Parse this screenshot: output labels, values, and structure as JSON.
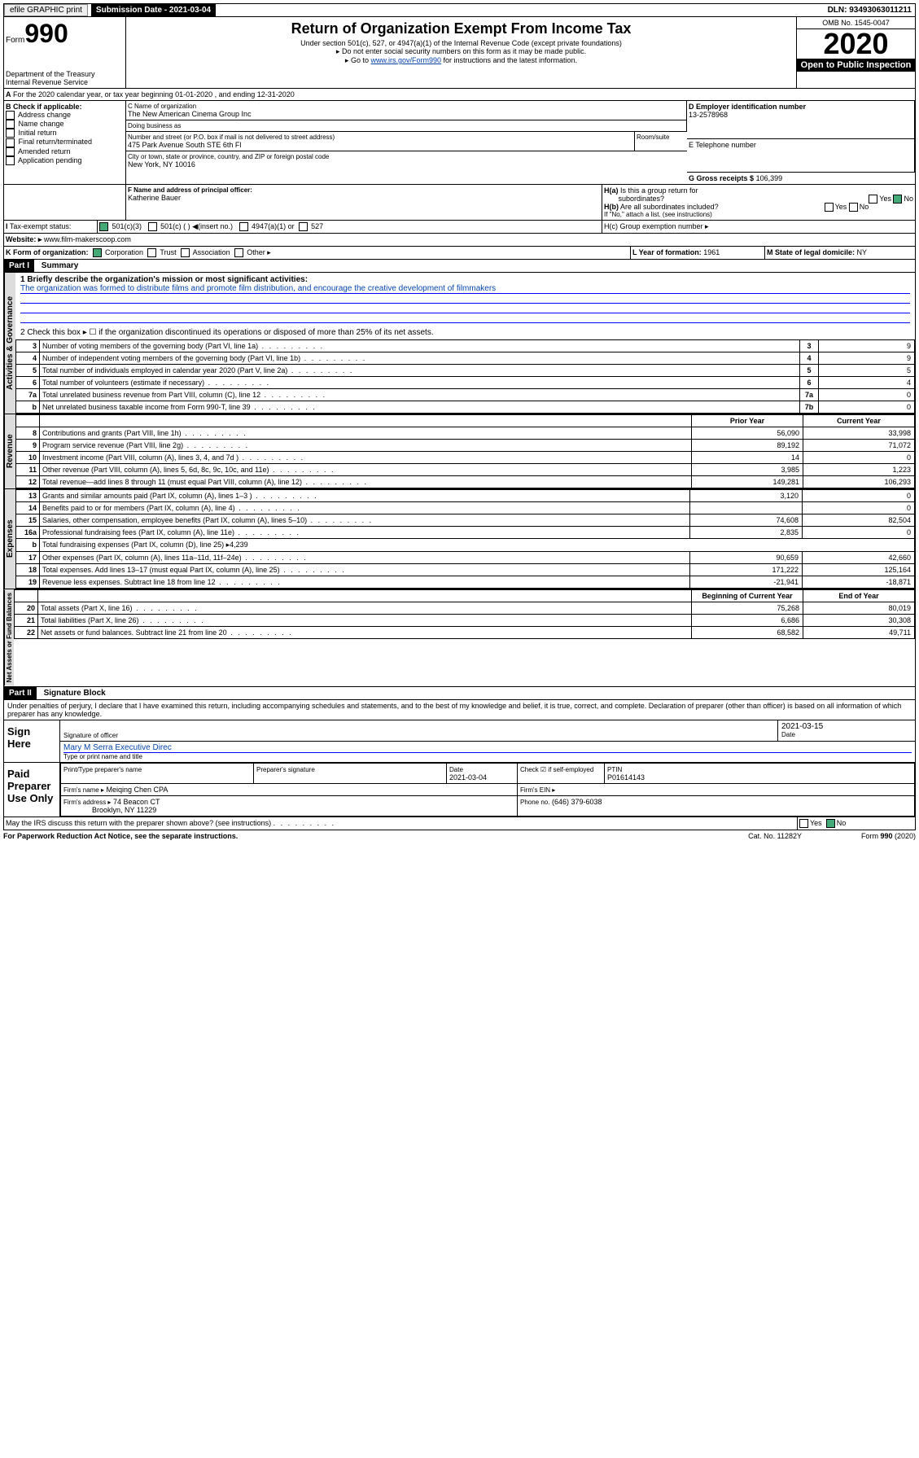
{
  "topbar": {
    "efile": "efile GRAPHIC print",
    "subdate_lbl": "Submission Date - 2021-03-04",
    "dln": "DLN: 93493063011211"
  },
  "header": {
    "form": "Form",
    "num": "990",
    "dept": "Department of the Treasury\nInternal Revenue Service",
    "title": "Return of Organization Exempt From Income Tax",
    "sub1": "Under section 501(c), 527, or 4947(a)(1) of the Internal Revenue Code (except private foundations)",
    "sub2": "▸ Do not enter social security numbers on this form as it may be made public.",
    "sub3": "▸ Go to ",
    "sublink": "www.irs.gov/Form990",
    "sub3b": " for instructions and the latest information.",
    "omb": "OMB No. 1545-0047",
    "year": "2020",
    "open": "Open to Public Inspection"
  },
  "A": {
    "text": "For the 2020 calendar year, or tax year beginning 01-01-2020   , and ending 12-31-2020"
  },
  "B": {
    "lbl": "B Check if applicable:",
    "items": [
      "Address change",
      "Name change",
      "Initial return",
      "Final return/terminated",
      "Amended return",
      "Application pending"
    ]
  },
  "C": {
    "name_lbl": "C Name of organization",
    "name": "The New American Cinema Group Inc",
    "dba_lbl": "Doing business as",
    "dba": "",
    "addr_lbl": "Number and street (or P.O. box if mail is not delivered to street address)",
    "room_lbl": "Room/suite",
    "addr": "475 Park Avenue South STE 6th Fl",
    "city_lbl": "City or town, state or province, country, and ZIP or foreign postal code",
    "city": "New York, NY  10016"
  },
  "D": {
    "lbl": "D Employer identification number",
    "val": "13-2578968"
  },
  "E": {
    "lbl": "E Telephone number",
    "val": ""
  },
  "G": {
    "lbl": "G Gross receipts $",
    "val": "106,399"
  },
  "F": {
    "lbl": "F  Name and address of principal officer:",
    "val": "Katherine Bauer"
  },
  "H": {
    "a": "H(a)  Is this a group return for subordinates?",
    "b": "H(b)  Are all subordinates included?",
    "bnote": "If \"No,\" attach a list. (see instructions)",
    "c": "H(c)  Group exemption number ▸",
    "yes": "Yes",
    "no": "No"
  },
  "I": {
    "lbl": "Tax-exempt status:",
    "c3": "501(c)(3)",
    "c": "501(c) (  ) ◀(insert no.)",
    "a1": "4947(a)(1) or",
    "s527": "527"
  },
  "J": {
    "lbl": "Website: ▸",
    "val": "www.film-makerscoop.com"
  },
  "K": {
    "lbl": "K Form of organization:",
    "corp": "Corporation",
    "trust": "Trust",
    "assoc": "Association",
    "other": "Other ▸"
  },
  "L": {
    "lbl": "L Year of formation:",
    "val": "1961"
  },
  "M": {
    "lbl": "M State of legal domicile:",
    "val": "NY"
  },
  "part1": {
    "hdr": "Part I",
    "title": "Summary"
  },
  "s1": {
    "lbl": "1  Briefly describe the organization's mission or most significant activities:",
    "txt": "The organization was formed to distribute films and promote film distribution, and encourage the creative development of filmmakers"
  },
  "s2": "2    Check this box ▸ ☐  if the organization discontinued its operations or disposed of more than 25% of its net assets.",
  "govlines": [
    {
      "n": "3",
      "t": "Number of voting members of the governing body (Part VI, line 1a)",
      "b": "3",
      "v": "9"
    },
    {
      "n": "4",
      "t": "Number of independent voting members of the governing body (Part VI, line 1b)",
      "b": "4",
      "v": "9"
    },
    {
      "n": "5",
      "t": "Total number of individuals employed in calendar year 2020 (Part V, line 2a)",
      "b": "5",
      "v": "5"
    },
    {
      "n": "6",
      "t": "Total number of volunteers (estimate if necessary)",
      "b": "6",
      "v": "4"
    },
    {
      "n": "7a",
      "t": "Total unrelated business revenue from Part VIII, column (C), line 12",
      "b": "7a",
      "v": "0"
    },
    {
      "n": "b",
      "t": "Net unrelated business taxable income from Form 990-T, line 39",
      "b": "7b",
      "v": "0"
    }
  ],
  "rev": {
    "h1": "Prior Year",
    "h2": "Current Year",
    "rows": [
      {
        "n": "8",
        "t": "Contributions and grants (Part VIII, line 1h)",
        "p": "56,090",
        "c": "33,998"
      },
      {
        "n": "9",
        "t": "Program service revenue (Part VIII, line 2g)",
        "p": "89,192",
        "c": "71,072"
      },
      {
        "n": "10",
        "t": "Investment income (Part VIII, column (A), lines 3, 4, and 7d )",
        "p": "14",
        "c": "0"
      },
      {
        "n": "11",
        "t": "Other revenue (Part VIII, column (A), lines 5, 6d, 8c, 9c, 10c, and 11e)",
        "p": "3,985",
        "c": "1,223"
      },
      {
        "n": "12",
        "t": "Total revenue—add lines 8 through 11 (must equal Part VIII, column (A), line 12)",
        "p": "149,281",
        "c": "106,293"
      }
    ]
  },
  "exp": {
    "rows": [
      {
        "n": "13",
        "t": "Grants and similar amounts paid (Part IX, column (A), lines 1–3 )",
        "p": "3,120",
        "c": "0"
      },
      {
        "n": "14",
        "t": "Benefits paid to or for members (Part IX, column (A), line 4)",
        "p": "",
        "c": "0"
      },
      {
        "n": "15",
        "t": "Salaries, other compensation, employee benefits (Part IX, column (A), lines 5–10)",
        "p": "74,608",
        "c": "82,504"
      },
      {
        "n": "16a",
        "t": "Professional fundraising fees (Part IX, column (A), line 11e)",
        "p": "2,835",
        "c": "0"
      },
      {
        "n": "b",
        "t": "Total fundraising expenses (Part IX, column (D), line 25) ▸4,239",
        "p": "",
        "c": ""
      },
      {
        "n": "17",
        "t": "Other expenses (Part IX, column (A), lines 11a–11d, 11f–24e)",
        "p": "90,659",
        "c": "42,660"
      },
      {
        "n": "18",
        "t": "Total expenses. Add lines 13–17 (must equal Part IX, column (A), line 25)",
        "p": "171,222",
        "c": "125,164"
      },
      {
        "n": "19",
        "t": "Revenue less expenses. Subtract line 18 from line 12",
        "p": "-21,941",
        "c": "-18,871"
      }
    ]
  },
  "net": {
    "h1": "Beginning of Current Year",
    "h2": "End of Year",
    "rows": [
      {
        "n": "20",
        "t": "Total assets (Part X, line 16)",
        "p": "75,268",
        "c": "80,019"
      },
      {
        "n": "21",
        "t": "Total liabilities (Part X, line 26)",
        "p": "6,686",
        "c": "30,308"
      },
      {
        "n": "22",
        "t": "Net assets or fund balances. Subtract line 21 from line 20",
        "p": "68,582",
        "c": "49,711"
      }
    ]
  },
  "part2": {
    "hdr": "Part II",
    "title": "Signature Block",
    "decl": "Under penalties of perjury, I declare that I have examined this return, including accompanying schedules and statements, and to the best of my knowledge and belief, it is true, correct, and complete. Declaration of preparer (other than officer) is based on all information of which preparer has any knowledge."
  },
  "sign": {
    "here": "Sign Here",
    "sig": "Signature of officer",
    "date": "2021-03-15",
    "dlbl": "Date",
    "name": "Mary M Serra  Executive Direc",
    "name_lbl": "Type or print name and title"
  },
  "paid": {
    "lbl": "Paid Preparer Use Only",
    "h": [
      "Print/Type preparer's name",
      "Preparer's signature",
      "Date",
      "",
      "PTIN"
    ],
    "date": "2021-03-04",
    "chk": "Check ☑ if self-employed",
    "ptin": "P01614143",
    "firm_lbl": "Firm's name  ▸",
    "firm": "Meiqing Chen CPA",
    "ein_lbl": "Firm's EIN ▸",
    "addr_lbl": "Firm's address ▸",
    "addr1": "74 Beacon CT",
    "addr2": "Brooklyn, NY  11229",
    "ph_lbl": "Phone no.",
    "ph": "(646) 379-6038"
  },
  "foot": {
    "q": "May the IRS discuss this return with the preparer shown above? (see instructions)",
    "yes": "Yes",
    "no": "No",
    "pra": "For Paperwork Reduction Act Notice, see the separate instructions.",
    "cat": "Cat. No. 11282Y",
    "form": "Form 990 (2020)"
  },
  "vlabels": {
    "gov": "Activities & Governance",
    "rev": "Revenue",
    "exp": "Expenses",
    "net": "Net Assets or Fund Balances"
  }
}
